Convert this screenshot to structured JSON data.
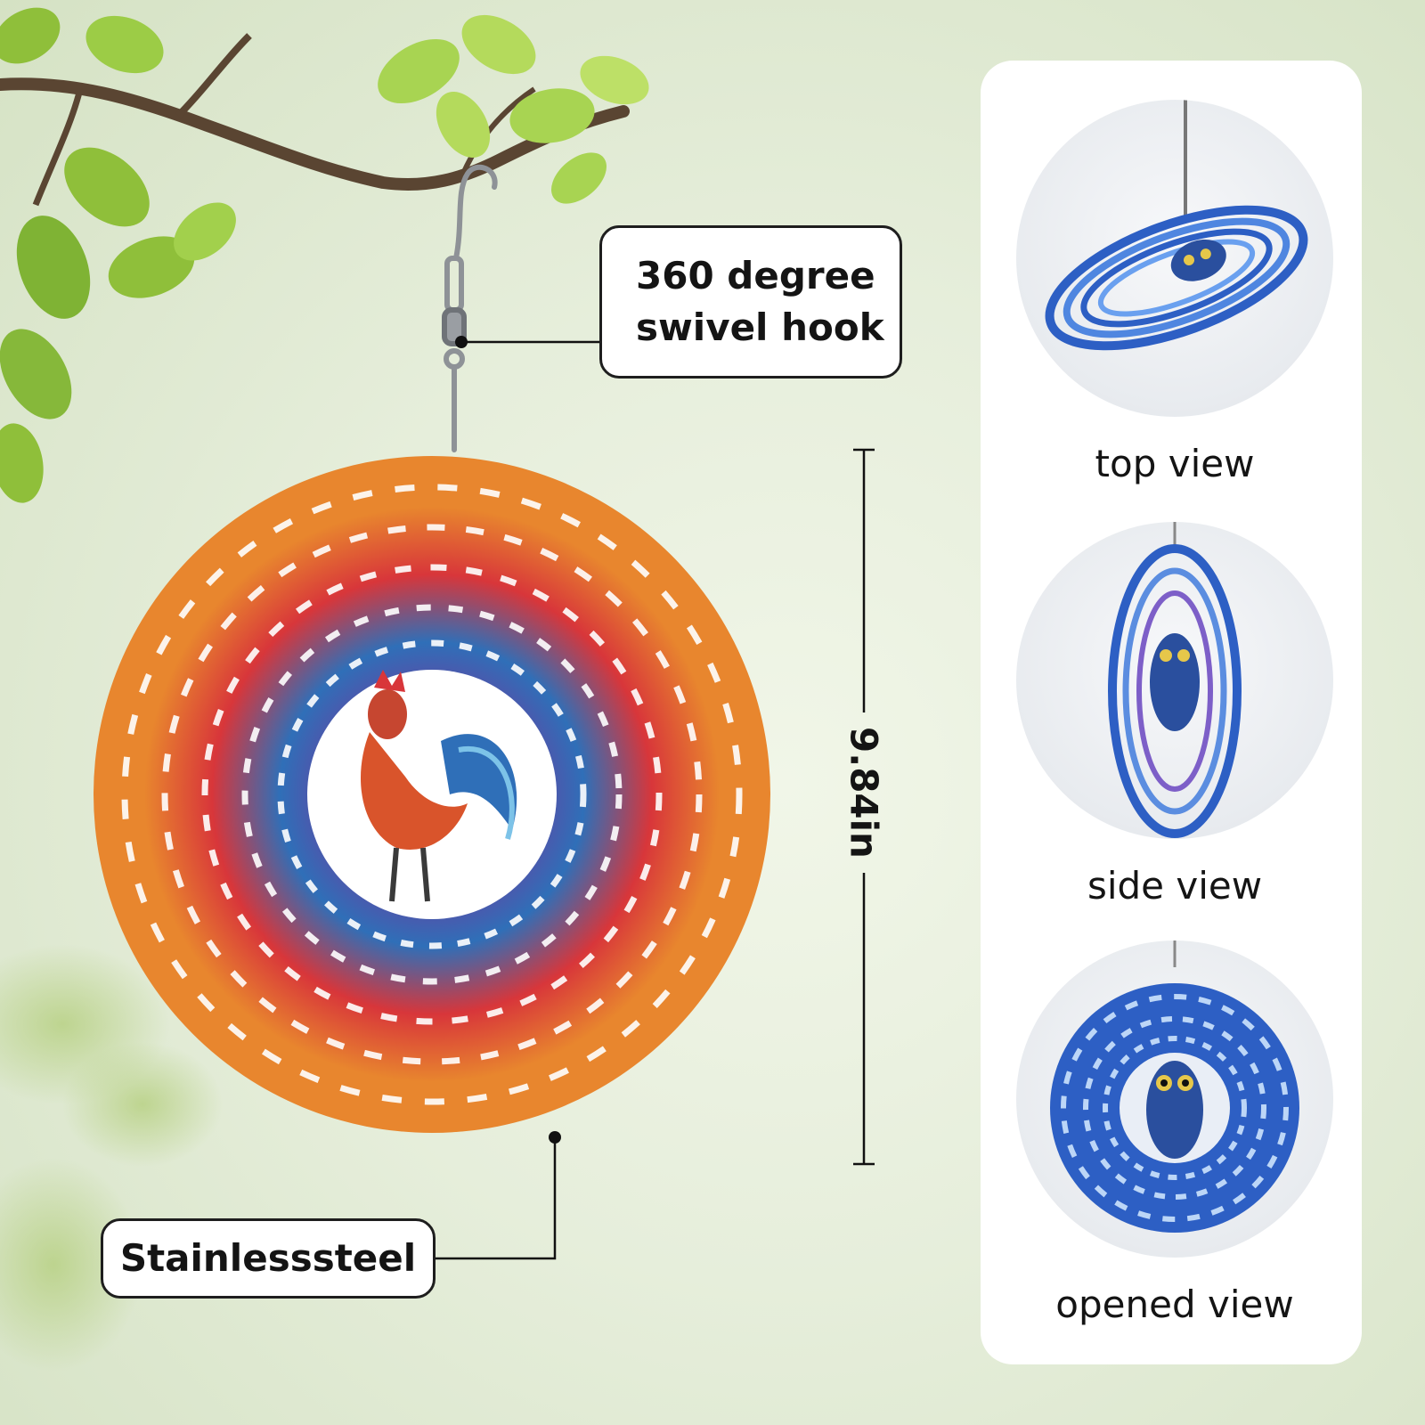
{
  "callouts": {
    "hook_line1": "360 degree",
    "hook_line2": "swivel hook",
    "material": "Stainlesssteel"
  },
  "dimension": {
    "height": "9.84in"
  },
  "views": [
    {
      "label": "top view",
      "icon": "owl-spinner-top-view"
    },
    {
      "label": "side view",
      "icon": "owl-spinner-side-view"
    },
    {
      "label": "opened view",
      "icon": "owl-spinner-opened-view"
    }
  ],
  "colors": {
    "spinner_orange": "#e8862e",
    "spinner_blue": "#2f6fb8",
    "spinner_red": "#d8363a",
    "owl_blue": "#2d5fc4",
    "leaf_green": "#8fbf3a"
  }
}
